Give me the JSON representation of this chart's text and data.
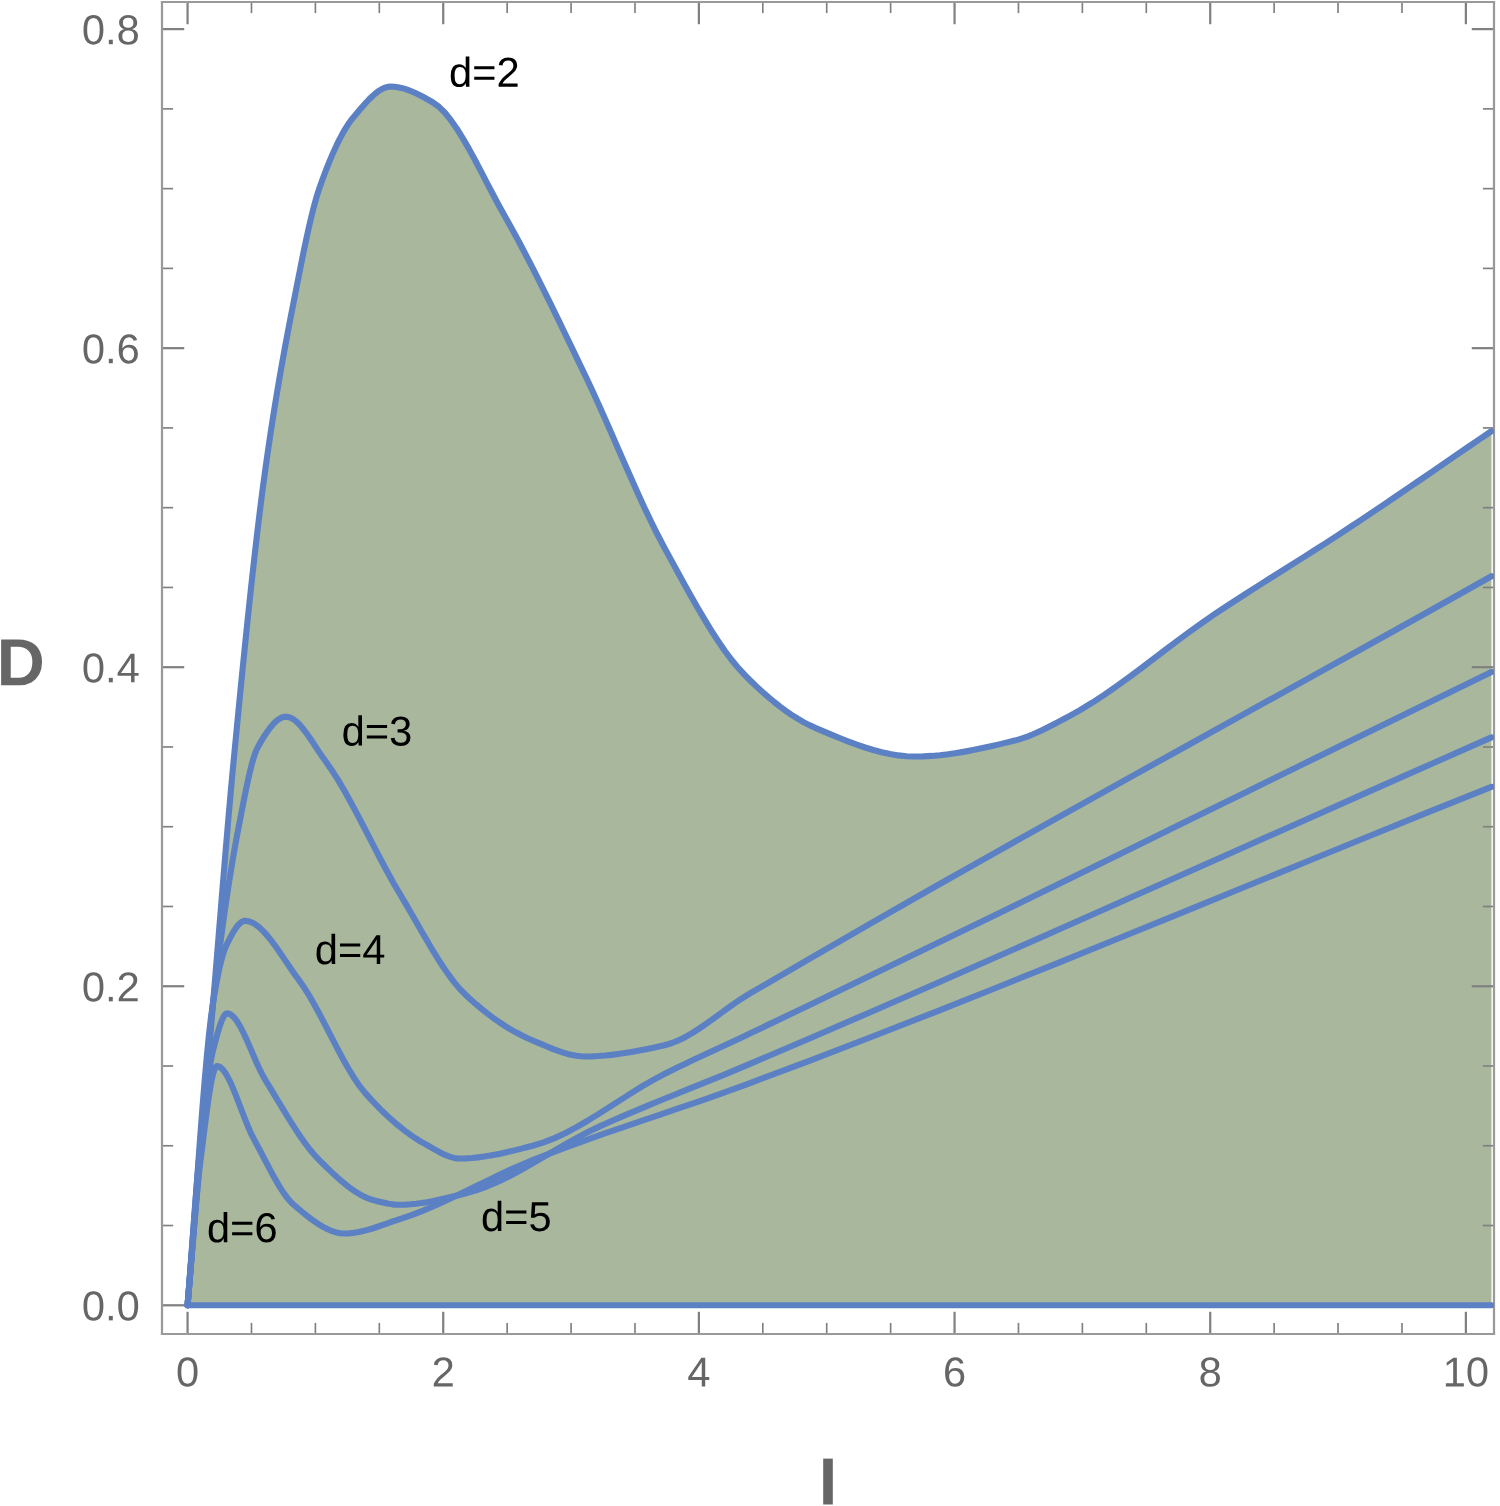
{
  "chart_data": {
    "type": "line",
    "xlabel": "I",
    "ylabel": "D",
    "xlim": [
      -0.2,
      10.22
    ],
    "ylim": [
      -0.018,
      0.817
    ],
    "xticks": [
      0,
      {
        "value": 0.5,
        "label": null
      },
      {
        "value": 1,
        "label": null
      },
      {
        "value": 1.5,
        "label": null
      },
      2,
      {
        "value": 2.5,
        "label": null
      },
      {
        "value": 3,
        "label": null
      },
      {
        "value": 3.5,
        "label": null
      },
      4,
      {
        "value": 4.5,
        "label": null
      },
      {
        "value": 5,
        "label": null
      },
      {
        "value": 5.5,
        "label": null
      },
      6,
      {
        "value": 6.5,
        "label": null
      },
      {
        "value": 7,
        "label": null
      },
      {
        "value": 7.5,
        "label": null
      },
      8,
      {
        "value": 8.5,
        "label": null
      },
      {
        "value": 9,
        "label": null
      },
      {
        "value": 9.5,
        "label": null
      },
      10
    ],
    "yticks": [
      {
        "value": 0,
        "label": "0.0"
      },
      {
        "value": 0.05,
        "label": null
      },
      {
        "value": 0.1,
        "label": null
      },
      {
        "value": 0.15,
        "label": null
      },
      {
        "value": 0.2,
        "label": "0.2"
      },
      {
        "value": 0.25,
        "label": null
      },
      {
        "value": 0.3,
        "label": null
      },
      {
        "value": 0.35,
        "label": null
      },
      {
        "value": 0.4,
        "label": "0.4"
      },
      {
        "value": 0.45,
        "label": null
      },
      {
        "value": 0.5,
        "label": null
      },
      {
        "value": 0.55,
        "label": null
      },
      {
        "value": 0.6,
        "label": "0.6"
      },
      {
        "value": 0.65,
        "label": null
      },
      {
        "value": 0.7,
        "label": null
      },
      {
        "value": 0.75,
        "label": null
      },
      {
        "value": 0.8,
        "label": "0.8"
      }
    ],
    "grid": false,
    "series": [
      {
        "type": "area",
        "name": "d=2",
        "color": "#5b80c4",
        "x": [
          0,
          0.2,
          0.36,
          0.61,
          0.83,
          1.03,
          1.3,
          1.59,
          1.92,
          2.48,
          3.11,
          3.73,
          4.36,
          4.91,
          5.69,
          6.47,
          6.89,
          8.03,
          9.08,
          10.2
        ],
        "values": [
          0,
          0.19,
          0.341,
          0.525,
          0.629,
          0.7,
          0.745,
          0.764,
          0.754,
          0.683,
          0.583,
          0.475,
          0.395,
          0.362,
          0.344,
          0.354,
          0.369,
          0.433,
          0.487,
          0.548
        ]
      },
      {
        "name": "d=3",
        "color": "#5b80c4",
        "x": [
          0,
          0.2,
          0.4,
          0.55,
          0.77,
          1.08,
          1.66,
          2.17,
          2.7,
          3.11,
          3.73,
          4.39,
          10.2
        ],
        "values": [
          0,
          0.19,
          0.3,
          0.35,
          0.369,
          0.341,
          0.258,
          0.195,
          0.166,
          0.156,
          0.163,
          0.195,
          0.457
        ]
      },
      {
        "name": "d=4",
        "color": "#5b80c4",
        "x": [
          0,
          0.2,
          0.3,
          0.45,
          0.87,
          1.39,
          1.86,
          2.13,
          2.7,
          3.73,
          4.39,
          10.2
        ],
        "values": [
          0,
          0.19,
          0.225,
          0.241,
          0.204,
          0.133,
          0.101,
          0.092,
          0.1,
          0.145,
          0.17,
          0.397
        ]
      },
      {
        "name": "d=5",
        "color": "#5b80c4",
        "x": [
          0,
          0.1,
          0.2,
          0.31,
          0.61,
          1.03,
          1.45,
          1.66,
          2.17,
          3.22,
          4.39,
          10.2
        ],
        "values": [
          0,
          0.1,
          0.16,
          0.183,
          0.141,
          0.091,
          0.066,
          0.063,
          0.07,
          0.112,
          0.151,
          0.356
        ]
      },
      {
        "name": "d=6",
        "color": "#5b80c4",
        "x": [
          0,
          0.1,
          0.23,
          0.52,
          0.83,
          1.23,
          1.66,
          2.7,
          4.39,
          10.2
        ],
        "values": [
          0,
          0.09,
          0.15,
          0.104,
          0.063,
          0.045,
          0.054,
          0.091,
          0.139,
          0.325
        ]
      },
      {
        "color": "#5b80c4",
        "x": [
          0,
          10.2
        ],
        "values": [
          0,
          0
        ]
      }
    ]
  }
}
